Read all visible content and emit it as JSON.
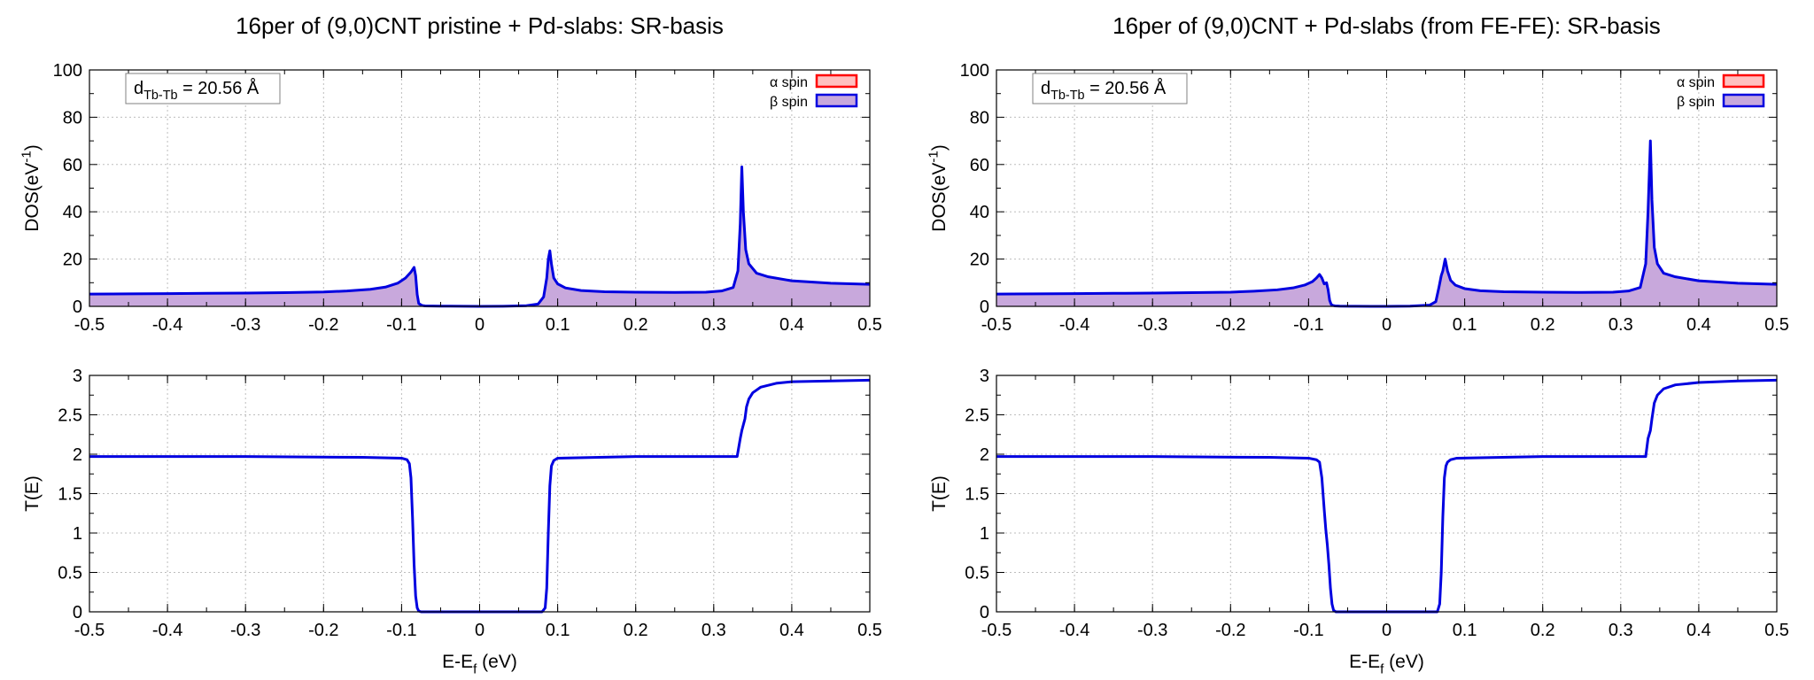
{
  "chart_data": [
    {
      "type": "area",
      "title": "16per of (9,0)CNT pristine + Pd-slabs: SR-basis",
      "ylabel": "DOS(eV<sup>-1</sup>)",
      "xlabel": "",
      "xlim": [
        -0.5,
        0.5
      ],
      "ylim": [
        0,
        100
      ],
      "xticks": [
        "-0.5",
        "-0.4",
        "-0.3",
        "-0.2",
        "-0.1",
        "0",
        "0.1",
        "0.2",
        "0.3",
        "0.4",
        "0.5"
      ],
      "yticks": [
        "0",
        "20",
        "40",
        "60",
        "80",
        "100"
      ],
      "grid": true,
      "legend_position": "top-right",
      "annotation": "d<sub>Tb-Tb</sub> = 20.56 Å",
      "series": [
        {
          "name": "α spin",
          "line_color": "#ff0000",
          "fill_color": "#ffc0c0",
          "x": [],
          "y": []
        },
        {
          "name": "β spin",
          "line_color": "#0000e0",
          "fill_color": "#c8a8dc",
          "x": [
            -0.5,
            -0.45,
            -0.4,
            -0.35,
            -0.3,
            -0.25,
            -0.2,
            -0.17,
            -0.14,
            -0.12,
            -0.105,
            -0.095,
            -0.088,
            -0.084,
            -0.082,
            -0.08,
            -0.078,
            -0.074,
            -0.07,
            -0.05,
            -0.02,
            0,
            0.03,
            0.06,
            0.075,
            0.082,
            0.086,
            0.088,
            0.09,
            0.092,
            0.095,
            0.1,
            0.11,
            0.13,
            0.16,
            0.2,
            0.25,
            0.29,
            0.31,
            0.325,
            0.331,
            0.334,
            0.336,
            0.338,
            0.341,
            0.345,
            0.355,
            0.37,
            0.4,
            0.45,
            0.5
          ],
          "y": [
            5.2,
            5.3,
            5.4,
            5.5,
            5.6,
            5.8,
            6.1,
            6.5,
            7.2,
            8.2,
            9.8,
            12,
            14.5,
            16.5,
            13,
            5,
            1.2,
            0.4,
            0.2,
            0.1,
            0.05,
            0,
            0.05,
            0.3,
            1,
            4,
            12,
            20,
            23.5,
            18,
            12,
            9.5,
            7.8,
            6.7,
            6.2,
            6,
            5.9,
            6,
            6.5,
            8,
            15,
            35,
            59,
            40,
            24,
            18,
            14,
            12.5,
            10.8,
            9.8,
            9.3
          ]
        }
      ]
    },
    {
      "type": "line",
      "title": "",
      "ylabel": "T(E)",
      "xlabel": "E-E<sub>f</sub> (eV)",
      "xlim": [
        -0.5,
        0.5
      ],
      "ylim": [
        0,
        3
      ],
      "xticks": [
        "-0.5",
        "-0.4",
        "-0.3",
        "-0.2",
        "-0.1",
        "0",
        "0.1",
        "0.2",
        "0.3",
        "0.4",
        "0.5"
      ],
      "yticks": [
        "0",
        "0.5",
        "1",
        "1.5",
        "2",
        "2.5",
        "3"
      ],
      "grid": true,
      "series": [
        {
          "line_color": "#0000e0",
          "x": [
            -0.5,
            -0.3,
            -0.15,
            -0.1,
            -0.093,
            -0.09,
            -0.088,
            -0.086,
            -0.084,
            -0.082,
            -0.08,
            -0.078,
            -0.075,
            -0.07,
            0,
            0.08,
            0.084,
            0.086,
            0.088,
            0.09,
            0.092,
            0.095,
            0.1,
            0.2,
            0.33,
            0.334,
            0.336,
            0.34,
            0.342,
            0.345,
            0.35,
            0.36,
            0.38,
            0.4,
            0.45,
            0.5
          ],
          "y": [
            1.97,
            1.97,
            1.96,
            1.95,
            1.93,
            1.88,
            1.7,
            1.2,
            0.6,
            0.2,
            0.05,
            0.01,
            0,
            0,
            0,
            0,
            0.05,
            0.3,
            1,
            1.6,
            1.85,
            1.92,
            1.95,
            1.97,
            1.97,
            2.2,
            2.3,
            2.45,
            2.6,
            2.7,
            2.78,
            2.85,
            2.9,
            2.92,
            2.93,
            2.94
          ]
        }
      ]
    },
    {
      "type": "area",
      "title": "16per of (9,0)CNT + Pd-slabs (from FE-FE): SR-basis",
      "ylabel": "DOS(eV<sup>-1</sup>)",
      "xlabel": "",
      "xlim": [
        -0.5,
        0.5
      ],
      "ylim": [
        0,
        100
      ],
      "xticks": [
        "-0.5",
        "-0.4",
        "-0.3",
        "-0.2",
        "-0.1",
        "0",
        "0.1",
        "0.2",
        "0.3",
        "0.4",
        "0.5"
      ],
      "yticks": [
        "0",
        "20",
        "40",
        "60",
        "80",
        "100"
      ],
      "grid": true,
      "legend_position": "top-right",
      "annotation": "d<sub>Tb-Tb</sub> = 20.56 Å",
      "series": [
        {
          "name": "α spin",
          "line_color": "#ff0000",
          "fill_color": "#ffc0c0",
          "x": [],
          "y": []
        },
        {
          "name": "β spin",
          "line_color": "#0000e0",
          "fill_color": "#c8a8dc",
          "x": [
            -0.5,
            -0.45,
            -0.4,
            -0.35,
            -0.3,
            -0.25,
            -0.2,
            -0.17,
            -0.14,
            -0.12,
            -0.105,
            -0.095,
            -0.09,
            -0.086,
            -0.083,
            -0.08,
            -0.077,
            -0.075,
            -0.073,
            -0.071,
            -0.069,
            -0.066,
            -0.06,
            -0.04,
            -0.02,
            0,
            0.03,
            0.055,
            0.063,
            0.067,
            0.07,
            0.072,
            0.075,
            0.078,
            0.082,
            0.088,
            0.1,
            0.12,
            0.15,
            0.2,
            0.25,
            0.29,
            0.31,
            0.325,
            0.332,
            0.335,
            0.338,
            0.34,
            0.343,
            0.347,
            0.355,
            0.37,
            0.4,
            0.45,
            0.5
          ],
          "y": [
            5.2,
            5.3,
            5.4,
            5.5,
            5.6,
            5.8,
            6,
            6.4,
            7,
            7.8,
            9,
            10.5,
            12,
            13.5,
            12,
            9.5,
            10,
            7,
            2.5,
            0.8,
            0.4,
            0.2,
            0.1,
            0.05,
            0,
            0,
            0.1,
            0.5,
            2,
            8,
            13,
            15,
            20,
            15,
            11,
            9,
            7.5,
            6.6,
            6.2,
            6,
            5.9,
            6,
            6.5,
            8,
            18,
            40,
            70,
            45,
            25,
            18,
            14,
            12.5,
            10.8,
            9.8,
            9.3
          ]
        }
      ]
    },
    {
      "type": "line",
      "title": "",
      "ylabel": "T(E)",
      "xlabel": "E-E<sub>f</sub> (eV)",
      "xlim": [
        -0.5,
        0.5
      ],
      "ylim": [
        0,
        3
      ],
      "xticks": [
        "-0.5",
        "-0.4",
        "-0.3",
        "-0.2",
        "-0.1",
        "0",
        "0.1",
        "0.2",
        "0.3",
        "0.4",
        "0.5"
      ],
      "yticks": [
        "0",
        "0.5",
        "1",
        "1.5",
        "2",
        "2.5",
        "3"
      ],
      "grid": true,
      "series": [
        {
          "line_color": "#0000e0",
          "x": [
            -0.5,
            -0.3,
            -0.15,
            -0.1,
            -0.09,
            -0.086,
            -0.083,
            -0.08,
            -0.078,
            -0.076,
            -0.074,
            -0.072,
            -0.07,
            -0.068,
            -0.065,
            -0.06,
            0,
            0.065,
            0.068,
            0.07,
            0.072,
            0.074,
            0.076,
            0.078,
            0.082,
            0.09,
            0.2,
            0.332,
            0.335,
            0.338,
            0.34,
            0.343,
            0.347,
            0.355,
            0.37,
            0.4,
            0.45,
            0.5
          ],
          "y": [
            1.97,
            1.97,
            1.96,
            1.95,
            1.93,
            1.9,
            1.7,
            1.3,
            1.05,
            0.85,
            0.6,
            0.3,
            0.1,
            0.02,
            0,
            0,
            0,
            0,
            0.1,
            0.5,
            1.2,
            1.7,
            1.85,
            1.9,
            1.93,
            1.95,
            1.97,
            1.97,
            2.2,
            2.3,
            2.45,
            2.65,
            2.75,
            2.83,
            2.88,
            2.91,
            2.93,
            2.94
          ]
        }
      ]
    }
  ]
}
